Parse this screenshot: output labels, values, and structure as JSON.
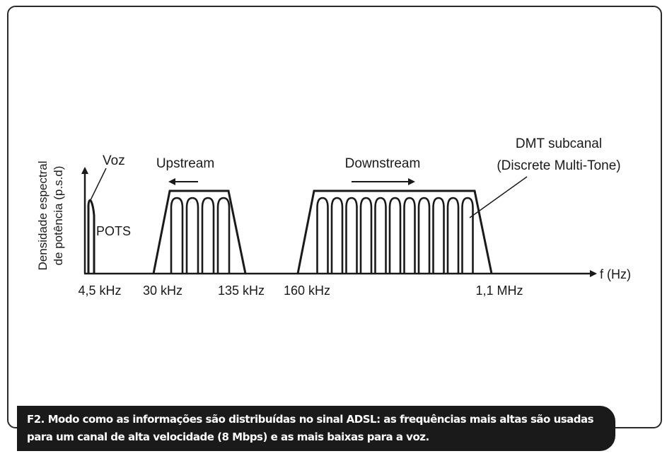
{
  "diagram": {
    "y_axis_label_line1": "Densidade espectral",
    "y_axis_label_line2": "de potência (p.s.d)",
    "x_axis_label": "f (Hz)",
    "labels": {
      "voz": "Voz",
      "pots": "POTS",
      "upstream": "Upstream",
      "downstream": "Downstream",
      "dmt_line1": "DMT subcanal",
      "dmt_line2": "(Discrete Multi-Tone)"
    },
    "frequency_ticks": [
      "4,5 kHz",
      "30 kHz",
      "135 kHz",
      "160 kHz",
      "1,1 MHz"
    ],
    "upstream_subcarriers": 4,
    "downstream_subcarriers": 11,
    "line_color": "#1a1a1a"
  },
  "caption": {
    "text": "F2. Modo como as informações são distribuídas no sinal ADSL: as frequências mais altas são usadas para um canal de alta velocidade (8 Mbps) e as mais baixas para a voz."
  }
}
